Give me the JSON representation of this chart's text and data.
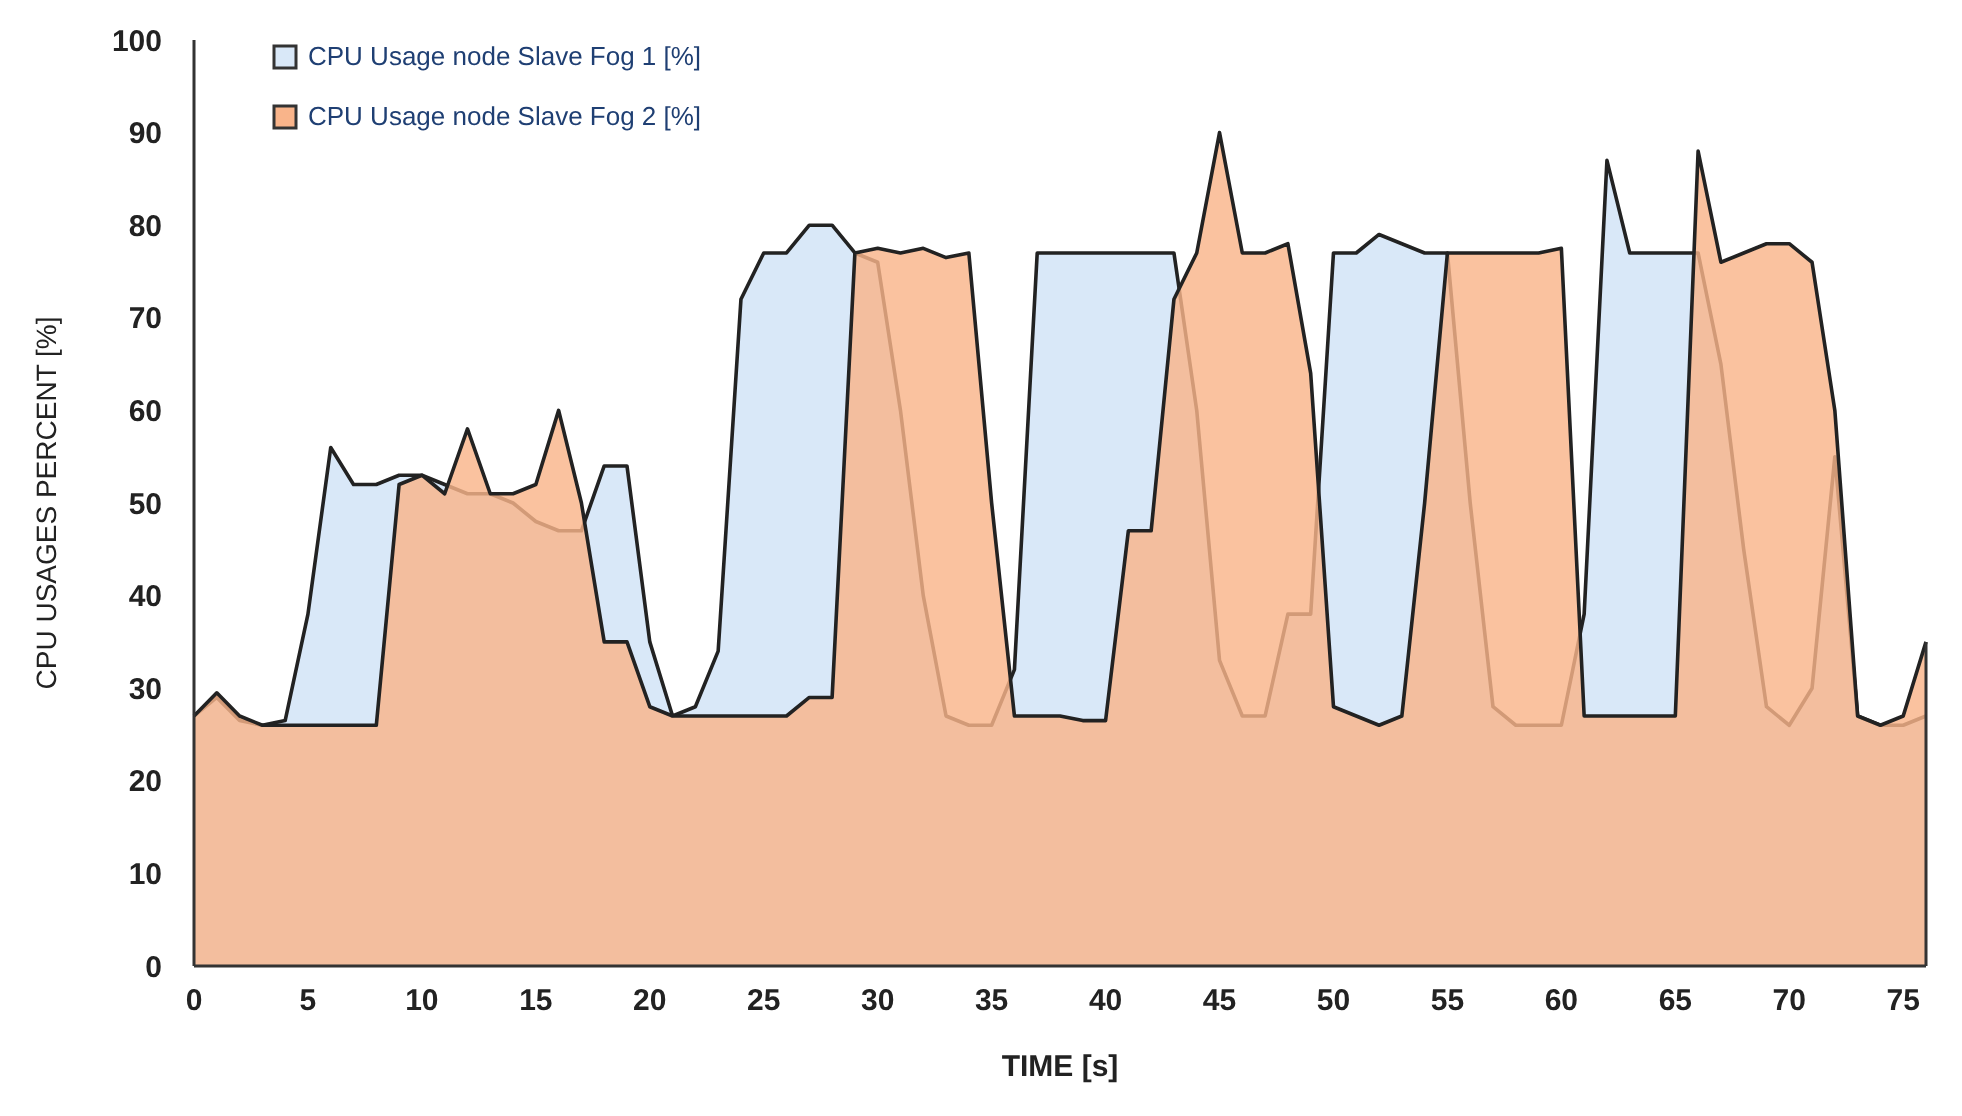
{
  "chart_data": {
    "type": "area",
    "xlabel": "TIME [s]",
    "ylabel": "CPU USAGES PERCENT [%]",
    "x": [
      0,
      1,
      2,
      3,
      4,
      5,
      6,
      7,
      8,
      9,
      10,
      11,
      12,
      13,
      14,
      15,
      16,
      17,
      18,
      19,
      20,
      21,
      22,
      23,
      24,
      25,
      26,
      27,
      28,
      29,
      30,
      31,
      32,
      33,
      34,
      35,
      36,
      37,
      38,
      39,
      40,
      41,
      42,
      43,
      44,
      45,
      46,
      47,
      48,
      49,
      50,
      51,
      52,
      53,
      54,
      55,
      56,
      57,
      58,
      59,
      60,
      61,
      62,
      63,
      64,
      65,
      66,
      67,
      68,
      69,
      70,
      71,
      72,
      73,
      74,
      75,
      76
    ],
    "series": [
      {
        "name": "CPU Usage node Slave Fog 1 [%]",
        "color": "#d9e8f8",
        "values": [
          27,
          29,
          26.5,
          26,
          26.5,
          38,
          56,
          52,
          52,
          53,
          53,
          52,
          51,
          51,
          50,
          48,
          47,
          47,
          54,
          54,
          35,
          27,
          28,
          34,
          72,
          77,
          77,
          80,
          80,
          77,
          76,
          60,
          40,
          27,
          26,
          26,
          32,
          77,
          77,
          77,
          77,
          77,
          77,
          77,
          60,
          33,
          27,
          27,
          38,
          38,
          77,
          77,
          79,
          78,
          77,
          77,
          50,
          28,
          26,
          26,
          26,
          38,
          87,
          77,
          77,
          77,
          77,
          65,
          45,
          28,
          26,
          30,
          55,
          27,
          26,
          26,
          27
        ]
      },
      {
        "name": "CPU Usage node Slave Fog 2 [%]",
        "color": "#f9b48a",
        "values": [
          27,
          29.5,
          27,
          26,
          26,
          26,
          26,
          26,
          26,
          52,
          53,
          51,
          58,
          51,
          51,
          52,
          60,
          50,
          35,
          35,
          28,
          27,
          27,
          27,
          27,
          27,
          27,
          29,
          29,
          77,
          77.5,
          77,
          77.5,
          76.5,
          77,
          50,
          27,
          27,
          27,
          26.5,
          26.5,
          47,
          47,
          72,
          77,
          90,
          77,
          77,
          78,
          64,
          28,
          27,
          26,
          27,
          50,
          77,
          77,
          77,
          77,
          77,
          77.5,
          27,
          27,
          27,
          27,
          27,
          88,
          76,
          77,
          78,
          78,
          76,
          60,
          27,
          26,
          27,
          35
        ]
      }
    ],
    "xlim": [
      0,
      76
    ],
    "xticks": [
      0,
      5,
      10,
      15,
      20,
      25,
      30,
      35,
      40,
      45,
      50,
      55,
      60,
      65,
      70,
      75
    ],
    "ylim": [
      0,
      100
    ],
    "yticks": [
      0,
      10,
      20,
      30,
      40,
      50,
      60,
      70,
      80,
      90,
      100
    ],
    "legend": "top left",
    "grid": false
  }
}
